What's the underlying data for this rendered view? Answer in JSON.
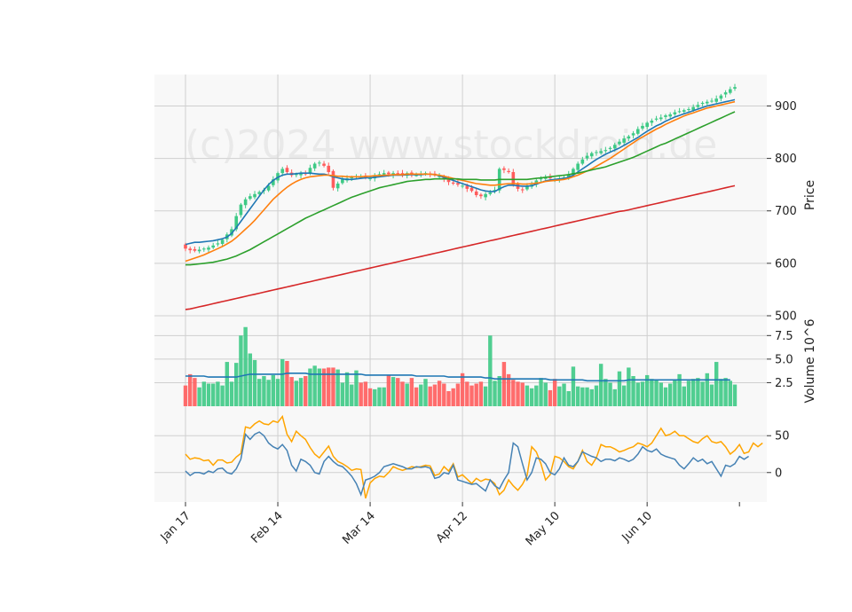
{
  "chart_data": {
    "type": "candlestick",
    "watermark": "(c)2024 www.stockdroid.de",
    "colors": {
      "up": "#3dc985",
      "down": "#ff5c5c",
      "sma_short": "#1f77b4",
      "sma_mid": "#ff7f0e",
      "sma_long": "#2ca02c",
      "sma_longest": "#d62728",
      "volume_avg": "#1f77b4",
      "osc_a": "#ffa500",
      "osc_b": "#4682b4",
      "grid": "#cfcfcf",
      "panel_bg": "#f8f8f8"
    },
    "x_tick_labels": [
      "Jan 17",
      "Feb 14",
      "Mar 14",
      "Apr 12",
      "May 10",
      "Jun 10"
    ],
    "x_tick_index": [
      0,
      20,
      40,
      60,
      80,
      100
    ],
    "price": {
      "ylabel": "Price",
      "ylim": [
        500,
        960
      ],
      "ticks": [
        500,
        600,
        700,
        800,
        900
      ],
      "close": [
        628,
        625,
        624,
        626,
        628,
        630,
        634,
        638,
        645,
        655,
        665,
        690,
        712,
        722,
        728,
        732,
        736,
        740,
        748,
        760,
        772,
        780,
        774,
        768,
        770,
        772,
        770,
        782,
        790,
        792,
        786,
        774,
        744,
        752,
        760,
        762,
        764,
        766,
        765,
        764,
        762,
        768,
        770,
        772,
        770,
        772,
        770,
        768,
        772,
        770,
        768,
        770,
        772,
        770,
        768,
        766,
        760,
        755,
        752,
        750,
        748,
        742,
        738,
        730,
        728,
        732,
        735,
        740,
        780,
        778,
        774,
        750,
        742,
        740,
        748,
        750,
        758,
        762,
        764,
        762,
        760,
        762,
        764,
        770,
        780,
        790,
        798,
        805,
        810,
        812,
        814,
        816,
        820,
        826,
        832,
        838,
        842,
        848,
        856,
        862,
        868,
        872,
        876,
        878,
        882,
        884,
        888,
        890,
        892,
        894,
        898,
        902,
        906,
        908,
        910,
        914,
        920,
        926,
        932,
        936
      ]
    },
    "sma": [
      {
        "period": "short",
        "values": [
          636,
          638,
          640,
          640,
          641,
          642,
          643,
          645,
          647,
          650,
          657,
          668,
          680,
          692,
          704,
          716,
          728,
          740,
          750,
          758,
          764,
          768,
          770,
          770,
          771,
          772,
          772,
          772,
          771,
          770,
          770,
          768,
          765,
          763,
          761,
          760,
          760,
          761,
          762,
          763,
          763,
          764,
          765,
          766,
          767,
          768,
          768,
          768,
          769,
          769,
          769,
          769,
          770,
          770,
          769,
          767,
          764,
          761,
          758,
          755,
          752,
          749,
          746,
          743,
          740,
          738,
          737,
          737,
          742,
          746,
          749,
          749,
          748,
          747,
          747,
          748,
          751,
          754,
          757,
          759,
          760,
          761,
          762,
          764,
          768,
          774,
          780,
          786,
          792,
          798,
          803,
          808,
          812,
          816,
          820,
          825,
          830,
          835,
          840,
          846,
          852,
          857,
          862,
          866,
          871,
          875,
          879,
          882,
          885,
          888,
          891,
          894,
          897,
          900,
          902,
          904,
          906,
          908,
          910,
          912
        ]
      },
      {
        "period": "mid",
        "values": [
          604,
          607,
          610,
          613,
          616,
          620,
          624,
          628,
          632,
          637,
          642,
          649,
          657,
          665,
          673,
          682,
          692,
          702,
          712,
          722,
          730,
          738,
          745,
          751,
          756,
          760,
          763,
          765,
          766,
          767,
          768,
          768,
          767,
          766,
          766,
          765,
          765,
          765,
          765,
          766,
          766,
          767,
          767,
          768,
          768,
          769,
          769,
          769,
          770,
          770,
          770,
          770,
          770,
          770,
          769,
          768,
          766,
          764,
          762,
          760,
          758,
          756,
          754,
          752,
          751,
          750,
          749,
          749,
          750,
          751,
          752,
          752,
          752,
          751,
          751,
          752,
          753,
          754,
          756,
          757,
          758,
          759,
          760,
          762,
          765,
          768,
          772,
          776,
          780,
          785,
          790,
          795,
          800,
          806,
          812,
          818,
          824,
          830,
          836,
          841,
          846,
          851,
          856,
          860,
          865,
          869,
          873,
          877,
          881,
          884,
          887,
          890,
          893,
          896,
          898,
          900,
          902,
          904,
          906,
          908
        ]
      },
      {
        "period": "long",
        "values": [
          597,
          597,
          598,
          599,
          600,
          601,
          602,
          604,
          606,
          608,
          611,
          614,
          618,
          622,
          626,
          631,
          636,
          641,
          646,
          651,
          656,
          661,
          666,
          671,
          676,
          681,
          686,
          690,
          694,
          698,
          702,
          706,
          710,
          714,
          718,
          722,
          726,
          729,
          732,
          735,
          738,
          741,
          744,
          746,
          748,
          750,
          752,
          754,
          756,
          757,
          758,
          759,
          760,
          760,
          761,
          761,
          761,
          761,
          761,
          761,
          760,
          760,
          760,
          760,
          759,
          759,
          759,
          759,
          760,
          760,
          760,
          760,
          760,
          760,
          760,
          761,
          762,
          763,
          764,
          765,
          766,
          767,
          768,
          769,
          771,
          772,
          774,
          776,
          778,
          780,
          782,
          784,
          787,
          790,
          793,
          796,
          799,
          802,
          806,
          810,
          814,
          818,
          822,
          826,
          829,
          833,
          837,
          841,
          845,
          849,
          853,
          857,
          861,
          865,
          869,
          873,
          877,
          881,
          885,
          889
        ]
      },
      {
        "period": "longest",
        "values": [
          512,
          513,
          515,
          517,
          519,
          521,
          523,
          525,
          527,
          529,
          531,
          533,
          535,
          537,
          539,
          541,
          543,
          545,
          547,
          549,
          551,
          553,
          555,
          557,
          559,
          561,
          563,
          565,
          567,
          569,
          571,
          573,
          575,
          577,
          579,
          581,
          583,
          585,
          587,
          589,
          591,
          593,
          595,
          597,
          599,
          601,
          603,
          605,
          607,
          609,
          611,
          613,
          615,
          617,
          619,
          621,
          623,
          625,
          627,
          629,
          631,
          633,
          635,
          637,
          639,
          641,
          643,
          645,
          647,
          649,
          651,
          653,
          655,
          657,
          659,
          661,
          663,
          665,
          667,
          669,
          671,
          673,
          675,
          677,
          679,
          681,
          683,
          685,
          687,
          689,
          691,
          693,
          695,
          697,
          699,
          700,
          702,
          704,
          706,
          708,
          710,
          712,
          714,
          716,
          718,
          720,
          722,
          724,
          726,
          728,
          730,
          732,
          734,
          736,
          738,
          740,
          742,
          744,
          746,
          748
        ]
      }
    ],
    "volume": {
      "ylabel": "Volume  10^6",
      "ylim": [
        0,
        9.6
      ],
      "ticks": [
        2.5,
        5.0,
        7.5
      ],
      "values": [
        2.2,
        3.4,
        3.0,
        2.0,
        2.6,
        2.4,
        2.4,
        2.6,
        2.2,
        4.7,
        2.6,
        4.6,
        7.5,
        8.4,
        5.6,
        4.9,
        2.9,
        3.2,
        2.8,
        3.3,
        2.9,
        5.0,
        4.8,
        3.1,
        2.7,
        3.0,
        3.2,
        4.0,
        4.3,
        4.0,
        4.0,
        4.1,
        4.1,
        3.9,
        2.5,
        3.6,
        2.3,
        3.8,
        2.5,
        2.6,
        1.9,
        1.8,
        2.0,
        2.0,
        3.3,
        3.1,
        3.0,
        2.6,
        2.4,
        3.0,
        2.0,
        2.3,
        2.9,
        2.1,
        2.3,
        2.7,
        2.4,
        1.6,
        1.9,
        2.4,
        3.5,
        2.6,
        2.2,
        2.4,
        2.6,
        2.1,
        7.5,
        2.7,
        3.2,
        4.7,
        3.4,
        2.8,
        2.6,
        2.5,
        2.2,
        1.9,
        2.2,
        3.0,
        2.5,
        1.7,
        2.9,
        2.1,
        2.4,
        1.6,
        4.2,
        2.1,
        2.0,
        2.0,
        1.8,
        2.2,
        4.5,
        2.9,
        2.5,
        1.8,
        3.7,
        2.2,
        4.1,
        3.2,
        2.5,
        2.6,
        3.3,
        2.9,
        2.8,
        2.5,
        2.0,
        2.4,
        2.8,
        3.4,
        2.1,
        2.7,
        2.9,
        3.0,
        2.6,
        3.5,
        2.3,
        4.7,
        2.9,
        3.0,
        2.7,
        2.3
      ],
      "avg": [
        3.2,
        3.2,
        3.2,
        3.2,
        3.2,
        3.1,
        3.1,
        3.1,
        3.1,
        3.1,
        3.1,
        3.1,
        3.2,
        3.3,
        3.4,
        3.4,
        3.4,
        3.4,
        3.4,
        3.4,
        3.4,
        3.4,
        3.5,
        3.5,
        3.5,
        3.5,
        3.5,
        3.4,
        3.4,
        3.4,
        3.4,
        3.4,
        3.4,
        3.4,
        3.4,
        3.4,
        3.4,
        3.4,
        3.4,
        3.3,
        3.3,
        3.3,
        3.3,
        3.3,
        3.3,
        3.3,
        3.3,
        3.3,
        3.3,
        3.3,
        3.2,
        3.2,
        3.2,
        3.2,
        3.2,
        3.2,
        3.2,
        3.1,
        3.1,
        3.1,
        3.1,
        3.1,
        3.1,
        3.1,
        3.1,
        3.0,
        3.0,
        2.9,
        2.9,
        2.9,
        2.9,
        2.9,
        2.9,
        2.9,
        2.9,
        2.9,
        2.9,
        2.9,
        2.9,
        2.8,
        2.8,
        2.8,
        2.8,
        2.8,
        2.8,
        2.8,
        2.8,
        2.7,
        2.7,
        2.7,
        2.7,
        2.7,
        2.7,
        2.7,
        2.7,
        2.7,
        2.8,
        2.8,
        2.8,
        2.8,
        2.8,
        2.8,
        2.8,
        2.8,
        2.8,
        2.8,
        2.8,
        2.8,
        2.8,
        2.8,
        2.8,
        2.8,
        2.8,
        2.8,
        2.8,
        2.8,
        2.8,
        2.8,
        2.8
      ]
    },
    "oscillator": {
      "ylim": [
        -40,
        90
      ],
      "ticks": [
        0,
        50
      ],
      "series": [
        {
          "values": [
            25,
            18,
            20,
            19,
            16,
            17,
            10,
            17,
            17,
            13,
            14,
            21,
            26,
            62,
            60,
            66,
            70,
            66,
            65,
            70,
            68,
            76,
            52,
            42,
            56,
            50,
            45,
            34,
            25,
            20,
            28,
            36,
            22,
            15,
            12,
            8,
            3,
            5,
            4,
            -35,
            -14,
            -8,
            -5,
            -6,
            0,
            8,
            5,
            3,
            5,
            8,
            7,
            8,
            10,
            9,
            -4,
            -2,
            8,
            2,
            12,
            -6,
            -3,
            -9,
            -15,
            -8,
            -12,
            -9,
            -10,
            -15,
            -30,
            -24,
            -10,
            -18,
            -24,
            -16,
            -4,
            35,
            28,
            12,
            -10,
            -3,
            22,
            20,
            15,
            8,
            5,
            15,
            30,
            15,
            10,
            20,
            38,
            35,
            35,
            32,
            28,
            30,
            33,
            35,
            40,
            38,
            35,
            40,
            50,
            60,
            50,
            52,
            56,
            50,
            50,
            46,
            42,
            40,
            46,
            50,
            42,
            40,
            42,
            35,
            25,
            30,
            38,
            26,
            28,
            40,
            35,
            40
          ]
        },
        {
          "values": [
            2,
            -4,
            0,
            0,
            -2,
            2,
            0,
            5,
            6,
            0,
            -2,
            5,
            18,
            52,
            45,
            52,
            55,
            50,
            40,
            35,
            32,
            38,
            30,
            10,
            2,
            18,
            15,
            10,
            0,
            -2,
            15,
            22,
            15,
            10,
            8,
            2,
            -5,
            -15,
            -30,
            -10,
            -8,
            -5,
            0,
            8,
            10,
            12,
            10,
            8,
            5,
            5,
            8,
            7,
            8,
            6,
            -8,
            -6,
            0,
            -2,
            10,
            -10,
            -12,
            -14,
            -16,
            -15,
            -20,
            -25,
            -10,
            -18,
            -22,
            -10,
            0,
            40,
            35,
            12,
            -10,
            0,
            20,
            18,
            12,
            0,
            -3,
            5,
            20,
            10,
            8,
            15,
            28,
            25,
            22,
            20,
            15,
            18,
            18,
            16,
            20,
            18,
            15,
            18,
            25,
            35,
            30,
            28,
            32,
            25,
            22,
            20,
            18,
            10,
            5,
            12,
            20,
            15,
            18,
            12,
            15,
            5,
            -5,
            10,
            8,
            12,
            22,
            18,
            22
          ]
        }
      ]
    }
  }
}
